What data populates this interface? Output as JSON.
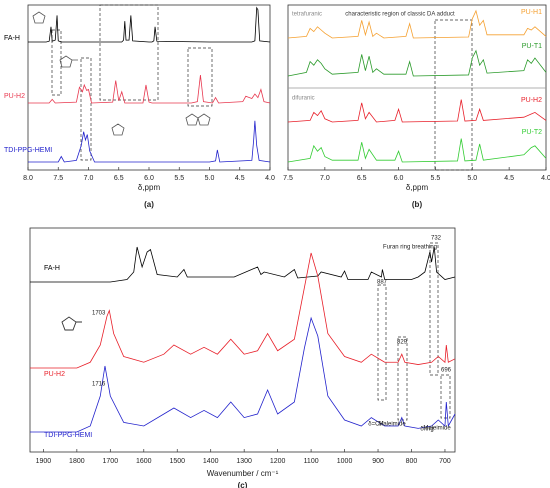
{
  "chart_data": [
    {
      "type": "line",
      "label": "(a)",
      "xlabel": "δ,ppm",
      "xlim": [
        8.0,
        4.0
      ],
      "xticks": [
        {
          "value": 8.0,
          "label": "8.0"
        },
        7.5,
        {
          "value": 7.0,
          "label": "7.0"
        },
        6.5,
        {
          "value": 6.0,
          "label": "6.0"
        },
        5.5,
        {
          "value": 5.0,
          "label": "5.0"
        },
        4.5,
        {
          "value": 4.0,
          "label": "4.0"
        }
      ],
      "series": [
        {
          "name": "FA-H",
          "color": "#000000",
          "x": [
            8.0,
            7.7,
            7.65,
            7.62,
            7.6,
            7.55,
            7.52,
            7.5,
            7.45,
            7.0,
            6.45,
            6.42,
            6.4,
            6.38,
            6.33,
            6.3,
            6.27,
            6.0,
            5.95,
            5.92,
            5.9,
            5.87,
            5.0,
            4.3,
            4.25,
            4.22,
            4.2,
            4.17,
            4.0
          ],
          "values": [
            0,
            0,
            2,
            40,
            2,
            5,
            70,
            3,
            0,
            0,
            0,
            5,
            55,
            5,
            5,
            70,
            3,
            0,
            0,
            3,
            40,
            2,
            0,
            0,
            3,
            90,
            85,
            3,
            0
          ]
        },
        {
          "name": "PU-H2",
          "color": "#e8384f",
          "x": [
            8.0,
            7.65,
            7.6,
            7.55,
            7.2,
            7.15,
            7.1,
            7.07,
            7.03,
            7.0,
            6.95,
            6.6,
            6.55,
            6.5,
            6.45,
            6.4,
            6.1,
            6.05,
            6.0,
            5.95,
            5.3,
            5.2,
            5.15,
            5.1,
            4.95,
            4.9,
            4.85,
            4.45,
            4.4,
            4.3,
            4.25,
            4.2,
            4.15,
            4.1,
            4.0
          ],
          "values": [
            0,
            0,
            8,
            0,
            2,
            35,
            25,
            40,
            28,
            30,
            0,
            2,
            50,
            5,
            25,
            0,
            0,
            40,
            2,
            0,
            0,
            3,
            62,
            3,
            0,
            12,
            0,
            3,
            15,
            10,
            20,
            12,
            30,
            3,
            0
          ]
        },
        {
          "name": "TDI-PPG-HEMI",
          "color": "#2222cc",
          "x": [
            8.0,
            7.5,
            7.45,
            7.4,
            7.2,
            7.12,
            7.08,
            7.05,
            7.02,
            6.98,
            6.9,
            5.0,
            4.9,
            4.87,
            4.83,
            4.3,
            4.27,
            4.25,
            4.22,
            4.18,
            4.0
          ],
          "values": [
            0,
            0,
            10,
            0,
            3,
            30,
            55,
            40,
            50,
            20,
            0,
            0,
            2,
            22,
            0,
            3,
            40,
            75,
            30,
            3,
            0
          ]
        }
      ]
    },
    {
      "type": "line",
      "label": "(b)",
      "xlabel": "δ,ppm",
      "xlim": [
        7.5,
        4.0
      ],
      "xticks": [
        7.5,
        {
          "value": 7.0,
          "label": "7.0"
        },
        6.5,
        {
          "value": 6.0,
          "label": "6.0"
        },
        5.5,
        {
          "value": 5.0,
          "label": "5.0"
        },
        4.5,
        {
          "value": 4.0,
          "label": "4.0"
        }
      ],
      "annotations": [
        "tetrafuranic",
        "difuranic",
        "characteristic region of classic DA adduct"
      ],
      "series": [
        {
          "name": "PU-H1",
          "color": "#f5a030",
          "x": [
            7.5,
            7.25,
            7.2,
            7.15,
            7.1,
            7.05,
            7.0,
            6.9,
            6.55,
            6.5,
            6.45,
            6.4,
            6.35,
            6.3,
            6.2,
            5.9,
            5.85,
            5.8,
            5.05,
            5.0,
            4.95,
            4.9,
            4.85,
            4.8,
            4.3,
            4.25,
            4.2,
            4.15,
            4.0
          ],
          "values": [
            0,
            5,
            30,
            20,
            35,
            25,
            15,
            0,
            5,
            55,
            10,
            50,
            5,
            15,
            0,
            5,
            45,
            0,
            3,
            60,
            85,
            40,
            55,
            10,
            10,
            30,
            25,
            35,
            5
          ]
        },
        {
          "name": "PU-T1",
          "color": "#2a9a2a",
          "x": [
            7.5,
            7.25,
            7.2,
            7.15,
            7.1,
            7.05,
            7.0,
            6.9,
            6.55,
            6.5,
            6.45,
            6.4,
            6.35,
            6.3,
            6.2,
            5.9,
            5.85,
            5.8,
            5.05,
            5.0,
            4.95,
            4.9,
            4.85,
            4.8,
            4.3,
            4.25,
            4.2,
            4.15,
            4.0
          ],
          "values": [
            0,
            10,
            40,
            30,
            45,
            35,
            20,
            5,
            10,
            60,
            15,
            55,
            10,
            20,
            5,
            5,
            40,
            0,
            3,
            50,
            70,
            30,
            45,
            8,
            15,
            45,
            35,
            50,
            10
          ]
        },
        {
          "name": "PU-H2",
          "color": "#e8202a",
          "x": [
            7.5,
            7.2,
            7.15,
            7.1,
            7.05,
            7.0,
            6.9,
            6.55,
            6.5,
            6.45,
            6.4,
            6.3,
            6.05,
            6.0,
            5.95,
            5.2,
            5.15,
            5.1,
            4.95,
            4.9,
            4.85,
            4.3,
            4.2,
            4.15,
            4.0
          ],
          "values": [
            0,
            5,
            30,
            20,
            35,
            10,
            0,
            5,
            60,
            10,
            30,
            0,
            5,
            40,
            0,
            3,
            70,
            3,
            5,
            40,
            5,
            15,
            25,
            30,
            5
          ]
        },
        {
          "name": "PU-T2",
          "color": "#33cc33",
          "x": [
            7.5,
            7.2,
            7.15,
            7.1,
            7.05,
            7.0,
            6.9,
            6.55,
            6.5,
            6.45,
            6.4,
            6.3,
            6.05,
            6.0,
            5.95,
            5.2,
            5.15,
            5.1,
            4.95,
            4.9,
            4.85,
            4.3,
            4.2,
            4.15,
            4.0
          ],
          "values": [
            0,
            10,
            45,
            30,
            40,
            15,
            5,
            5,
            55,
            10,
            35,
            5,
            5,
            30,
            0,
            3,
            65,
            3,
            5,
            50,
            5,
            20,
            40,
            45,
            10
          ]
        }
      ]
    },
    {
      "type": "line",
      "label": "(c)",
      "xlabel": "Wavenumber / cm⁻¹",
      "xlim": [
        1940,
        670
      ],
      "xticks": [
        1900,
        1800,
        1700,
        1600,
        1500,
        1400,
        1300,
        1200,
        1100,
        1000,
        900,
        800,
        700
      ],
      "annotations": [
        "1703",
        "1716",
        "887",
        "829",
        "732",
        "696",
        "Furan ring breathing",
        "Maleimide",
        "Maleimide",
        "δ=CH",
        "δring"
      ],
      "series": [
        {
          "name": "FA-H",
          "color": "#000000",
          "x": [
            1940,
            1700,
            1650,
            1630,
            1620,
            1605,
            1590,
            1580,
            1560,
            1500,
            1480,
            1470,
            1400,
            1330,
            1260,
            1250,
            1240,
            1180,
            1150,
            1140,
            1080,
            1070,
            1010,
            1000,
            990,
            930,
            920,
            890,
            887,
            880,
            800,
            780,
            760,
            745,
            740,
            732,
            725,
            700,
            670
          ],
          "values": [
            0,
            0,
            5,
            20,
            70,
            30,
            60,
            65,
            15,
            10,
            25,
            10,
            10,
            10,
            30,
            15,
            20,
            10,
            25,
            8,
            12,
            20,
            10,
            22,
            5,
            5,
            20,
            10,
            25,
            5,
            5,
            10,
            20,
            60,
            40,
            70,
            20,
            5,
            10
          ]
        },
        {
          "name": "PU-H2",
          "color": "#e8202a",
          "x": [
            1940,
            1800,
            1760,
            1730,
            1710,
            1703,
            1690,
            1660,
            1600,
            1540,
            1510,
            1460,
            1420,
            1380,
            1340,
            1300,
            1260,
            1230,
            1200,
            1150,
            1120,
            1100,
            1080,
            1050,
            1000,
            950,
            920,
            880,
            840,
            829,
            820,
            780,
            740,
            720,
            700,
            696,
            690,
            670
          ],
          "values": [
            0,
            0,
            5,
            20,
            45,
            50,
            30,
            10,
            5,
            12,
            20,
            12,
            18,
            12,
            25,
            12,
            15,
            30,
            15,
            25,
            70,
            100,
            80,
            30,
            10,
            5,
            12,
            5,
            5,
            12,
            5,
            3,
            5,
            10,
            5,
            20,
            5,
            8
          ]
        },
        {
          "name": "TDI-PPG-HEMI",
          "color": "#2222cc",
          "x": [
            1940,
            1800,
            1760,
            1730,
            1716,
            1700,
            1660,
            1600,
            1540,
            1510,
            1460,
            1420,
            1380,
            1340,
            1300,
            1260,
            1230,
            1200,
            1150,
            1120,
            1100,
            1080,
            1050,
            1000,
            950,
            920,
            880,
            840,
            829,
            820,
            780,
            740,
            720,
            700,
            696,
            690,
            670
          ],
          "values": [
            0,
            0,
            5,
            30,
            55,
            30,
            8,
            5,
            15,
            20,
            12,
            18,
            12,
            25,
            12,
            15,
            35,
            15,
            25,
            70,
            95,
            80,
            30,
            10,
            5,
            12,
            5,
            5,
            12,
            5,
            3,
            5,
            10,
            5,
            25,
            5,
            15
          ]
        }
      ]
    }
  ]
}
